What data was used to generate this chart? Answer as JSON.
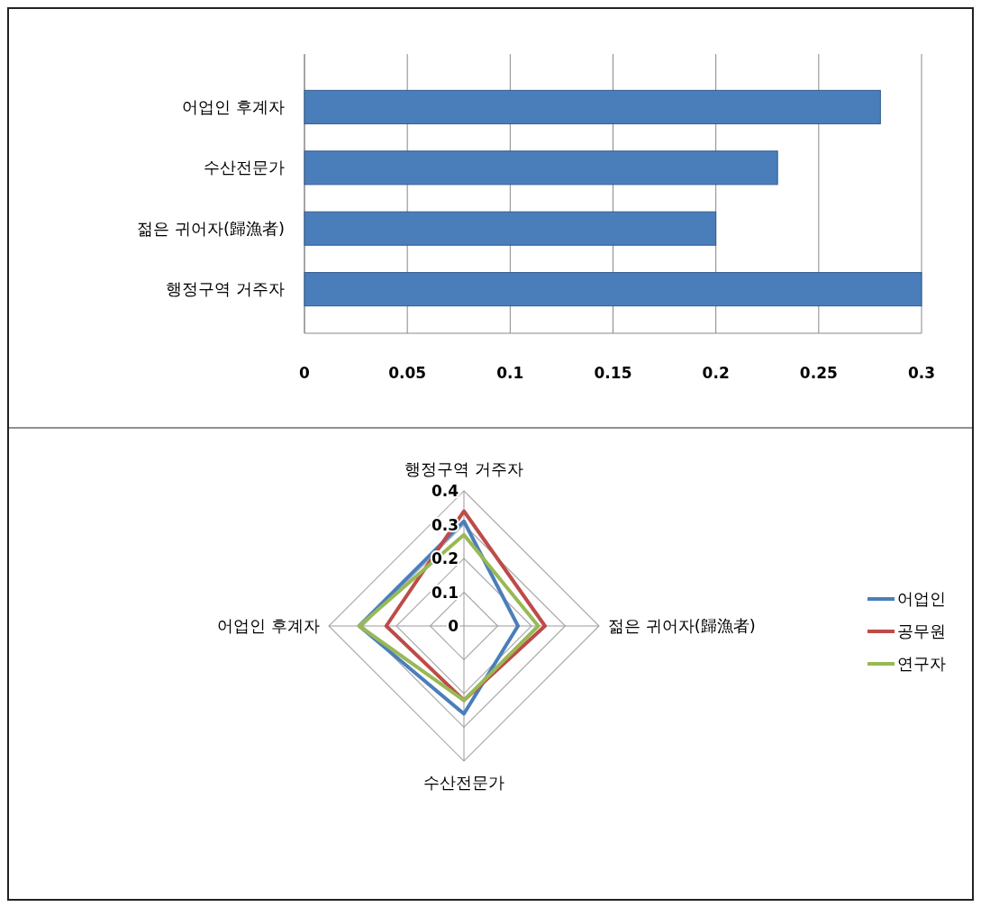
{
  "chart_data": [
    {
      "type": "bar",
      "orientation": "horizontal",
      "categories": [
        "어업인 후계자",
        "수산전문가",
        "젊은 귀어자(歸漁者)",
        "행정구역 거주자"
      ],
      "values": [
        0.28,
        0.23,
        0.2,
        0.3
      ],
      "color": "#4a7ebb",
      "xlim": [
        0,
        0.3
      ],
      "xticks": [
        0,
        0.05,
        0.1,
        0.15,
        0.2,
        0.25,
        0.3
      ],
      "grid": "x"
    },
    {
      "type": "radar",
      "categories": [
        "행정구역 거주자",
        "젊은 귀어자(歸漁者)",
        "수산전문가",
        "어업인 후계자"
      ],
      "ylim": [
        0,
        0.4
      ],
      "yticks": [
        0,
        0.1,
        0.2,
        0.3,
        0.4
      ],
      "legend": "right",
      "series": [
        {
          "name": "어업인",
          "color": "#4a7ebb",
          "values": [
            0.31,
            0.16,
            0.26,
            0.31
          ]
        },
        {
          "name": "공무원",
          "color": "#be4b48",
          "values": [
            0.34,
            0.24,
            0.22,
            0.23
          ]
        },
        {
          "name": "연구자",
          "color": "#98b954",
          "values": [
            0.27,
            0.22,
            0.22,
            0.31
          ]
        }
      ]
    }
  ]
}
